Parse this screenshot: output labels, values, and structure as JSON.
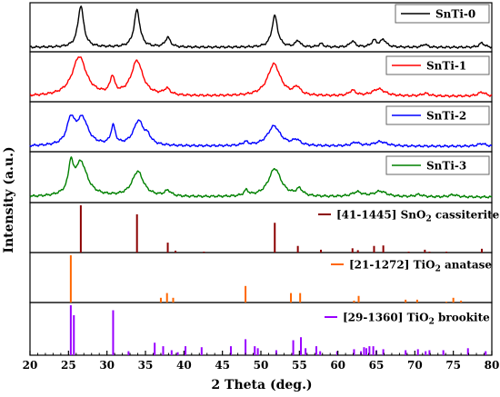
{
  "chart_data": {
    "type": "line",
    "xlabel": "2 Theta (deg.)",
    "ylabel": "Intensity (a.u.)",
    "xlim": [
      20,
      80
    ],
    "x_ticks": [
      "20",
      "25",
      "30",
      "35",
      "40",
      "45",
      "50",
      "55",
      "60",
      "65",
      "70",
      "75",
      "80"
    ],
    "series": [
      {
        "name": "SnTi-0",
        "color": "#000000",
        "baseline": 0.06,
        "peaks": [
          [
            26.6,
            0.95,
            0.45
          ],
          [
            33.9,
            0.85,
            0.45
          ],
          [
            37.9,
            0.22,
            0.4
          ],
          [
            51.8,
            0.72,
            0.45
          ],
          [
            54.8,
            0.15,
            0.35
          ],
          [
            57.8,
            0.08,
            0.35
          ],
          [
            61.9,
            0.14,
            0.4
          ],
          [
            64.7,
            0.15,
            0.4
          ],
          [
            65.9,
            0.17,
            0.45
          ],
          [
            71.3,
            0.07,
            0.35
          ],
          [
            78.7,
            0.1,
            0.4
          ]
        ]
      },
      {
        "name": "SnTi-1",
        "color": "#ff0000",
        "baseline": 0.08,
        "peaks": [
          [
            26.4,
            0.88,
            1.1
          ],
          [
            30.7,
            0.38,
            0.35
          ],
          [
            33.9,
            0.78,
            0.9
          ],
          [
            37.8,
            0.14,
            0.5
          ],
          [
            51.7,
            0.72,
            1.0
          ],
          [
            54.7,
            0.17,
            0.5
          ],
          [
            61.9,
            0.12,
            0.5
          ],
          [
            65.3,
            0.16,
            1.0
          ],
          [
            71.4,
            0.06,
            0.6
          ],
          [
            78.7,
            0.09,
            0.6
          ]
        ]
      },
      {
        "name": "SnTi-2",
        "color": "#0000ff",
        "baseline": 0.08,
        "peaks": [
          [
            25.3,
            0.55,
            0.6
          ],
          [
            26.8,
            0.6,
            0.9
          ],
          [
            30.8,
            0.42,
            0.35
          ],
          [
            34.1,
            0.55,
            0.8
          ],
          [
            35.3,
            0.15,
            0.5
          ],
          [
            48.0,
            0.08,
            0.4
          ],
          [
            51.7,
            0.45,
            1.0
          ],
          [
            54.6,
            0.12,
            0.6
          ],
          [
            62.3,
            0.08,
            0.6
          ],
          [
            65.5,
            0.1,
            1.0
          ],
          [
            78.7,
            0.06,
            0.6
          ]
        ]
      },
      {
        "name": "SnTi-3",
        "color": "#008000",
        "baseline": 0.08,
        "peaks": [
          [
            25.3,
            0.6,
            0.35
          ],
          [
            26.6,
            0.75,
            1.0
          ],
          [
            34.0,
            0.55,
            0.9
          ],
          [
            37.9,
            0.12,
            0.5
          ],
          [
            48.1,
            0.12,
            0.35
          ],
          [
            51.8,
            0.62,
            1.0
          ],
          [
            55.0,
            0.15,
            0.5
          ],
          [
            62.5,
            0.1,
            0.8
          ],
          [
            65.5,
            0.12,
            1.0
          ],
          [
            70.5,
            0.05,
            0.6
          ],
          [
            75.0,
            0.05,
            0.6
          ]
        ]
      }
    ],
    "references": [
      {
        "code": "[41-1445]",
        "formula": "SnO",
        "subscript": "2",
        "phase": "cassiterite",
        "color": "#8b0000",
        "sticks": [
          [
            26.6,
            1.0
          ],
          [
            33.9,
            0.81
          ],
          [
            37.9,
            0.21
          ],
          [
            38.9,
            0.04
          ],
          [
            42.6,
            0.02
          ],
          [
            51.8,
            0.63
          ],
          [
            54.8,
            0.14
          ],
          [
            57.8,
            0.06
          ],
          [
            61.9,
            0.09
          ],
          [
            62.6,
            0.05
          ],
          [
            64.7,
            0.14
          ],
          [
            65.9,
            0.15
          ],
          [
            69.2,
            0.02
          ],
          [
            71.3,
            0.06
          ],
          [
            71.9,
            0.02
          ],
          [
            74.1,
            0.02
          ],
          [
            78.7,
            0.08
          ]
        ]
      },
      {
        "code": "[21-1272]",
        "formula": "TiO",
        "subscript": "2",
        "phase": "anatase",
        "color": "#ff6600",
        "sticks": [
          [
            25.3,
            1.0
          ],
          [
            37.0,
            0.1
          ],
          [
            37.8,
            0.2
          ],
          [
            38.6,
            0.1
          ],
          [
            48.0,
            0.35
          ],
          [
            53.9,
            0.2
          ],
          [
            55.1,
            0.2
          ],
          [
            62.1,
            0.04
          ],
          [
            62.7,
            0.14
          ],
          [
            68.8,
            0.06
          ],
          [
            70.3,
            0.06
          ],
          [
            74.1,
            0.02
          ],
          [
            75.0,
            0.1
          ],
          [
            76.0,
            0.04
          ]
        ]
      },
      {
        "code": "[29-1360]",
        "formula": "TiO",
        "subscript": "2",
        "phase": "brookite",
        "color": "#9900ff",
        "sticks": [
          [
            25.3,
            1.0
          ],
          [
            25.7,
            0.8
          ],
          [
            30.8,
            0.9
          ],
          [
            32.8,
            0.08
          ],
          [
            36.2,
            0.25
          ],
          [
            37.3,
            0.18
          ],
          [
            38.4,
            0.1
          ],
          [
            39.2,
            0.06
          ],
          [
            40.2,
            0.18
          ],
          [
            42.3,
            0.16
          ],
          [
            46.1,
            0.18
          ],
          [
            48.0,
            0.32
          ],
          [
            49.2,
            0.18
          ],
          [
            49.6,
            0.14
          ],
          [
            52.0,
            0.1
          ],
          [
            54.2,
            0.3
          ],
          [
            55.2,
            0.36
          ],
          [
            55.8,
            0.14
          ],
          [
            57.2,
            0.18
          ],
          [
            57.7,
            0.08
          ],
          [
            59.9,
            0.08
          ],
          [
            62.1,
            0.12
          ],
          [
            63.0,
            0.08
          ],
          [
            63.4,
            0.16
          ],
          [
            63.7,
            0.14
          ],
          [
            64.1,
            0.18
          ],
          [
            64.6,
            0.18
          ],
          [
            65.0,
            0.1
          ],
          [
            65.9,
            0.12
          ],
          [
            68.8,
            0.1
          ],
          [
            70.4,
            0.12
          ],
          [
            71.4,
            0.08
          ],
          [
            71.9,
            0.1
          ],
          [
            73.7,
            0.1
          ],
          [
            76.9,
            0.14
          ],
          [
            79.2,
            0.08
          ]
        ]
      }
    ]
  }
}
